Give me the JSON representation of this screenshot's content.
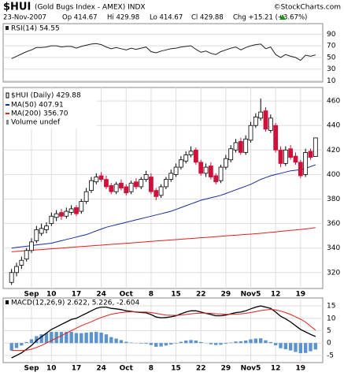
{
  "header": {
    "symbol": "$HUI",
    "name": "(Gold Bugs Index - AMEX) INDX",
    "credit": "©StockCharts.com",
    "date": "23-Nov-2007",
    "open": "Op 414.67",
    "high": "Hi 429.98",
    "low": "Lo 414.67",
    "close": "Cl 429.88",
    "change": "Chg +15.21 (+3.67%)"
  },
  "chart_data": [
    {
      "type": "candlestick",
      "label": "$HUI (Daily) 429.88",
      "volume_label": "Volume undef",
      "grid": true,
      "categories": [
        null,
        null,
        null,
        null,
        "Sep",
        null,
        null,
        null,
        "10",
        null,
        null,
        null,
        null,
        "17",
        null,
        null,
        null,
        null,
        "24",
        null,
        null,
        null,
        null,
        "Oct",
        null,
        null,
        null,
        null,
        "8",
        null,
        null,
        null,
        null,
        "15",
        null,
        null,
        null,
        null,
        "22",
        null,
        null,
        null,
        null,
        "29",
        null,
        null,
        null,
        null,
        "Nov5",
        null,
        null,
        null,
        null,
        "12",
        null,
        null,
        null,
        null,
        "19",
        null,
        null,
        null
      ],
      "open": [
        312,
        320,
        326,
        331,
        338,
        346,
        352,
        355,
        360,
        365,
        369,
        366,
        369,
        373,
        370,
        378,
        387,
        394,
        399,
        396,
        391,
        386,
        393,
        390,
        386,
        394,
        390,
        396,
        398,
        387,
        383,
        390,
        396,
        400,
        406,
        411,
        416,
        420,
        410,
        401,
        407,
        399,
        395,
        406,
        412,
        420,
        427,
        418,
        428,
        440,
        446,
        452,
        436,
        440,
        420,
        409,
        421,
        415,
        410,
        400,
        419,
        414.67
      ],
      "high": [
        323,
        328,
        333,
        340,
        348,
        358,
        360,
        361,
        369,
        371,
        372,
        373,
        375,
        375,
        380,
        389,
        398,
        401,
        402,
        399,
        393,
        394,
        396,
        392,
        395,
        397,
        398,
        403,
        401,
        389,
        392,
        398,
        404,
        409,
        415,
        419,
        423,
        422,
        412,
        409,
        410,
        401,
        408,
        416,
        424,
        429,
        430,
        432,
        443,
        450,
        462,
        455,
        449,
        442,
        423,
        423,
        424,
        418,
        412,
        421,
        421,
        429.98
      ],
      "low": [
        310,
        317,
        323,
        329,
        336,
        344,
        350,
        352,
        358,
        362,
        363,
        364,
        367,
        366,
        368,
        376,
        385,
        392,
        394,
        388,
        384,
        384,
        387,
        383,
        384,
        388,
        388,
        394,
        384,
        379,
        381,
        388,
        394,
        398,
        404,
        409,
        414,
        408,
        399,
        398,
        396,
        392,
        393,
        404,
        410,
        418,
        416,
        416,
        426,
        438,
        444,
        435,
        434,
        418,
        406,
        407,
        412,
        408,
        397,
        398,
        412,
        414.67
      ],
      "close": [
        320,
        325,
        330,
        338,
        345,
        355,
        356,
        358,
        366,
        368,
        366,
        370,
        372,
        368,
        378,
        386,
        395,
        398,
        396,
        390,
        386,
        392,
        389,
        385,
        393,
        390,
        396,
        400,
        386,
        382,
        390,
        396,
        401,
        406,
        412,
        416,
        419,
        410,
        401,
        406,
        398,
        394,
        406,
        413,
        421,
        426,
        418,
        429,
        440,
        447,
        451,
        437,
        446,
        420,
        409,
        420,
        414,
        410,
        399,
        418,
        414,
        429.88
      ],
      "series": [
        {
          "name": "MA(50) 407.91",
          "color": "#1c2c96",
          "values": [
            340,
            340.5,
            341,
            341.5,
            342,
            342.5,
            343,
            343.5,
            344,
            345,
            346,
            347,
            348,
            349,
            350,
            351,
            352.5,
            354,
            355.5,
            357,
            358,
            359,
            360,
            361,
            362,
            363,
            364,
            365,
            366,
            367,
            368,
            369,
            370,
            371.5,
            373,
            374.5,
            376,
            377.5,
            379,
            380,
            381,
            382,
            383,
            384.5,
            386,
            387.5,
            389,
            390.5,
            392,
            394,
            396,
            397.5,
            399,
            400,
            401,
            402,
            403,
            403.5,
            404,
            405,
            406.5,
            407.91
          ]
        },
        {
          "name": "MA(200) 356.70",
          "color": "#e0201b",
          "values": [
            337,
            337.3,
            337.6,
            337.9,
            338.2,
            338.5,
            338.8,
            339.1,
            339.4,
            339.7,
            340,
            340.3,
            340.6,
            340.9,
            341.2,
            341.5,
            341.8,
            342.1,
            342.4,
            342.7,
            343,
            343.3,
            343.6,
            343.9,
            344.2,
            344.5,
            344.8,
            345.1,
            345.4,
            345.7,
            346,
            346.3,
            346.6,
            346.9,
            347.2,
            347.5,
            347.8,
            348.1,
            348.4,
            348.7,
            349,
            349.3,
            349.6,
            349.9,
            350.2,
            350.5,
            350.8,
            351.1,
            351.4,
            351.7,
            352,
            352.4,
            352.8,
            353.2,
            353.6,
            354,
            354.4,
            354.8,
            355.2,
            355.6,
            356,
            356.7
          ]
        }
      ],
      "ylim": [
        307,
        471
      ],
      "yticks": [
        320,
        340,
        360,
        380,
        400,
        420,
        440,
        460
      ]
    },
    {
      "type": "line",
      "label": "RSI(14) 54.55",
      "color": "#222222",
      "grid": true,
      "values": [
        48,
        52,
        56,
        60,
        63,
        67,
        67,
        68,
        70,
        70,
        68,
        69,
        69,
        66,
        69,
        71,
        73,
        74,
        72,
        68,
        65,
        67,
        65,
        63,
        66,
        64,
        66,
        68,
        60,
        58,
        61,
        63,
        65,
        66,
        68,
        69,
        70,
        64,
        59,
        61,
        57,
        55,
        60,
        63,
        66,
        68,
        63,
        67,
        70,
        72,
        73,
        65,
        68,
        55,
        50,
        55,
        52,
        50,
        45,
        54,
        52,
        54.55
      ],
      "ylim": [
        8,
        108
      ],
      "yticks": [
        10,
        30,
        50,
        70,
        90
      ]
    },
    {
      "type": "macd",
      "label": "MACD(12,26,9) 2.622, 5.226, -2.604",
      "grid": true,
      "categories": [
        null,
        null,
        null,
        null,
        "Sep",
        null,
        null,
        null,
        "10",
        null,
        null,
        null,
        null,
        "17",
        null,
        null,
        null,
        null,
        "24",
        null,
        null,
        null,
        null,
        "Oct",
        null,
        null,
        null,
        null,
        "8",
        null,
        null,
        null,
        null,
        "15",
        null,
        null,
        null,
        null,
        "22",
        null,
        null,
        null,
        null,
        "29",
        null,
        null,
        null,
        null,
        "Nov5",
        null,
        null,
        null,
        null,
        "12",
        null,
        null,
        null,
        null,
        "19",
        null,
        null,
        null
      ],
      "series": [
        {
          "name": "MACD",
          "color": "#000000",
          "values": [
            -6,
            -5,
            -4,
            -2.5,
            -1,
            1,
            2.5,
            4,
            5.5,
            6.5,
            7.5,
            8.5,
            9.5,
            10,
            11,
            12,
            13,
            14,
            14.5,
            14.5,
            14,
            13.8,
            13.5,
            13,
            12.8,
            12.5,
            12.3,
            12.2,
            11.5,
            10.5,
            10.2,
            10.3,
            10.6,
            11,
            11.8,
            12.5,
            13,
            13,
            12.5,
            12,
            11.5,
            11,
            11,
            11.3,
            11.8,
            12.3,
            12.5,
            13,
            13.8,
            14.5,
            15,
            14.5,
            14,
            12.5,
            10.8,
            9.8,
            8.5,
            7,
            5.5,
            4.5,
            3.5,
            2.622
          ]
        },
        {
          "name": "Signal",
          "color": "#e0201b",
          "values": [
            -3,
            -3,
            -3,
            -2.9,
            -2.5,
            -1.8,
            -1,
            0,
            1,
            2,
            3,
            4,
            5,
            6,
            7,
            7.8,
            8.6,
            9.5,
            10.3,
            11,
            11.6,
            12,
            12.3,
            12.5,
            12.6,
            12.6,
            12.5,
            12.5,
            12.3,
            12,
            11.6,
            11.3,
            11.2,
            11.2,
            11.3,
            11.5,
            11.8,
            12,
            12.1,
            12.1,
            12,
            11.8,
            11.7,
            11.6,
            11.6,
            11.7,
            11.8,
            12,
            12.3,
            12.7,
            13.1,
            13.4,
            13.6,
            13.4,
            12.9,
            12.3,
            11.5,
            10.6,
            9.6,
            8.5,
            6.8,
            5.226
          ]
        },
        {
          "name": "Histogram",
          "color": "#5b93cf",
          "values": [
            -3,
            -2,
            -1,
            0.4,
            1.5,
            2.8,
            3.5,
            4,
            4.5,
            4.5,
            4.5,
            4.5,
            4.5,
            4,
            4,
            4.2,
            4.4,
            4.5,
            4.2,
            3.5,
            2.4,
            1.8,
            1.2,
            0.5,
            0.2,
            -0.1,
            -0.2,
            -0.3,
            -0.8,
            -1.5,
            -1.4,
            -1,
            -0.6,
            -0.2,
            0.5,
            1,
            1.2,
            1,
            0.4,
            -0.1,
            -0.5,
            -0.8,
            -0.7,
            -0.3,
            0.2,
            0.6,
            0.7,
            1,
            1.5,
            1.8,
            1.9,
            1.1,
            0.4,
            -0.9,
            -2.1,
            -2.5,
            -3,
            -3.6,
            -4.1,
            -4,
            -3.3,
            -2.604
          ]
        }
      ],
      "ylim": [
        -7.9,
        18.2
      ],
      "yticks": [
        -5,
        0,
        5,
        10,
        15
      ]
    }
  ]
}
